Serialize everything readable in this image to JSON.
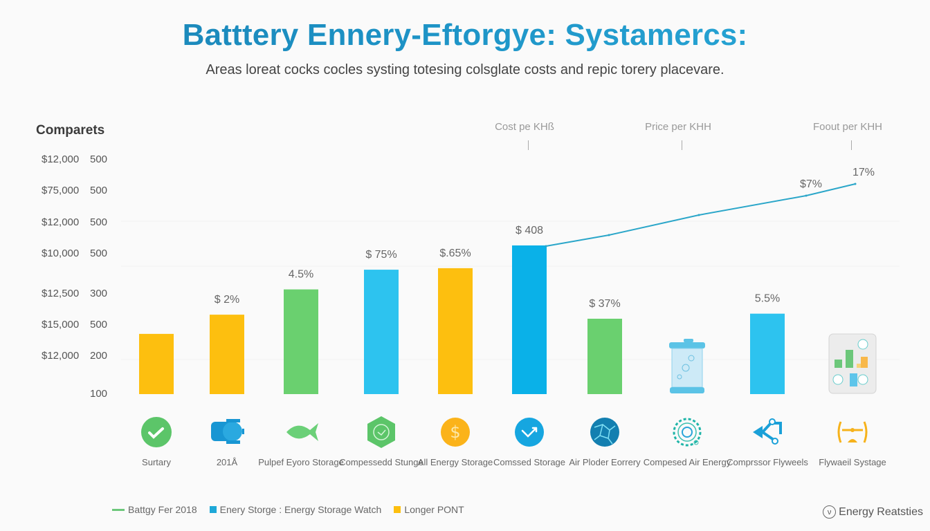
{
  "header": {
    "title": "Batttery Ennery-Eftorgye: Systamercs:",
    "subtitle": "Areas loreat cocks cocles systing totesing colsglate costs and repic torery placevare."
  },
  "colors": {
    "yellow": "#fdbf0f",
    "green": "#6ad06f",
    "blue": "#2dc3ef",
    "deep_blue": "#0ab1e8",
    "line": "#2aa6c9"
  },
  "chart_data": {
    "type": "bar",
    "title": "Batttery Ennery-Eftorgye: Systamercs:",
    "subtitle": "Areas loreat cocks cocles systing totesing colsglate costs and repic torery placevare.",
    "ylabel": "Comparets",
    "y_ticks_cost": [
      "$12,000",
      "$75,000",
      "$12,000",
      "$10,000",
      "$12,500",
      "$15,000",
      "$12,000"
    ],
    "y_ticks_count": [
      "500",
      "500",
      "500",
      "500",
      "300",
      "500",
      "200",
      "100"
    ],
    "ylim": [
      100,
      500
    ],
    "grid": false,
    "column_headers": [
      "Cost pe KHß",
      "Price per KHH",
      "Foout per KHH"
    ],
    "categories": [
      "Surtary",
      "201Å",
      "Pulpef Eyoro Storage",
      "Compessedd Stunge",
      "All Energy Storage",
      "Comssed Storage",
      "Air Ploder Eorrery",
      "Compesed Air Energy",
      "Comprssor Flyweels",
      "Flywaeil Systage"
    ],
    "bars": [
      {
        "category": "Surtary",
        "value": 200,
        "label": "",
        "color": "yellow"
      },
      {
        "category": "201Å",
        "value": 238,
        "label": "$ 2%",
        "color": "yellow"
      },
      {
        "category": "Pulpef Eyoro Storage",
        "value": 288,
        "label": "4.5%",
        "color": "green"
      },
      {
        "category": "Compessedd Stunge",
        "value": 327,
        "label": "$ 75%",
        "color": "blue"
      },
      {
        "category": "All Energy Storage",
        "value": 330,
        "label": "$.65%",
        "color": "yellow"
      },
      {
        "category": "Comssed Storage",
        "value": 375,
        "label": "$ 408",
        "color": "deep_blue"
      },
      {
        "category": "Air Ploder Eorrery",
        "value": 230,
        "label": "$ 37%",
        "color": "green"
      },
      {
        "category": "Compesed Air Energy",
        "value": null,
        "label": "",
        "color": "icon-canister"
      },
      {
        "category": "Comprssor Flyweels",
        "value": 240,
        "label": "5.5%",
        "color": "blue"
      },
      {
        "category": "Flywaeil Systage",
        "value": null,
        "label": "",
        "color": "icon-minichart"
      }
    ],
    "line_series": {
      "name": "trend",
      "points": [
        {
          "category_index": 5.5,
          "value": 355
        },
        {
          "category_index": 6.5,
          "value": 372
        },
        {
          "category_index": 7.3,
          "value": 392
        },
        {
          "category_index": 8.4,
          "value": 415
        },
        {
          "category_index": 9.3,
          "value": 438
        }
      ],
      "labels": [
        {
          "at_index": 3,
          "text": "$7%"
        },
        {
          "at_index": 4,
          "text": "17%"
        }
      ]
    },
    "legend": [
      {
        "label": "Battgy Fer 2018",
        "kind": "line",
        "color": "#6cc77a"
      },
      {
        "label": "Enery Storge : Energy Storage Watch",
        "kind": "square",
        "color": "#1ea8d8"
      },
      {
        "label": "Longer PONT",
        "kind": "square",
        "color": "#fdbf0f"
      }
    ],
    "legend_position": "bottom-left"
  },
  "category_icons": [
    "check-circle-icon",
    "pump-icon",
    "fish-icon",
    "hexagon-gauge-icon",
    "dollar-coin-icon",
    "trend-check-circle-icon",
    "globe-network-icon",
    "gear-circle-icon",
    "share-network-icon",
    "flywheel-antenna-icon"
  ],
  "footer": {
    "brand": "Energy Reatsties",
    "brand_icon": "ν"
  }
}
